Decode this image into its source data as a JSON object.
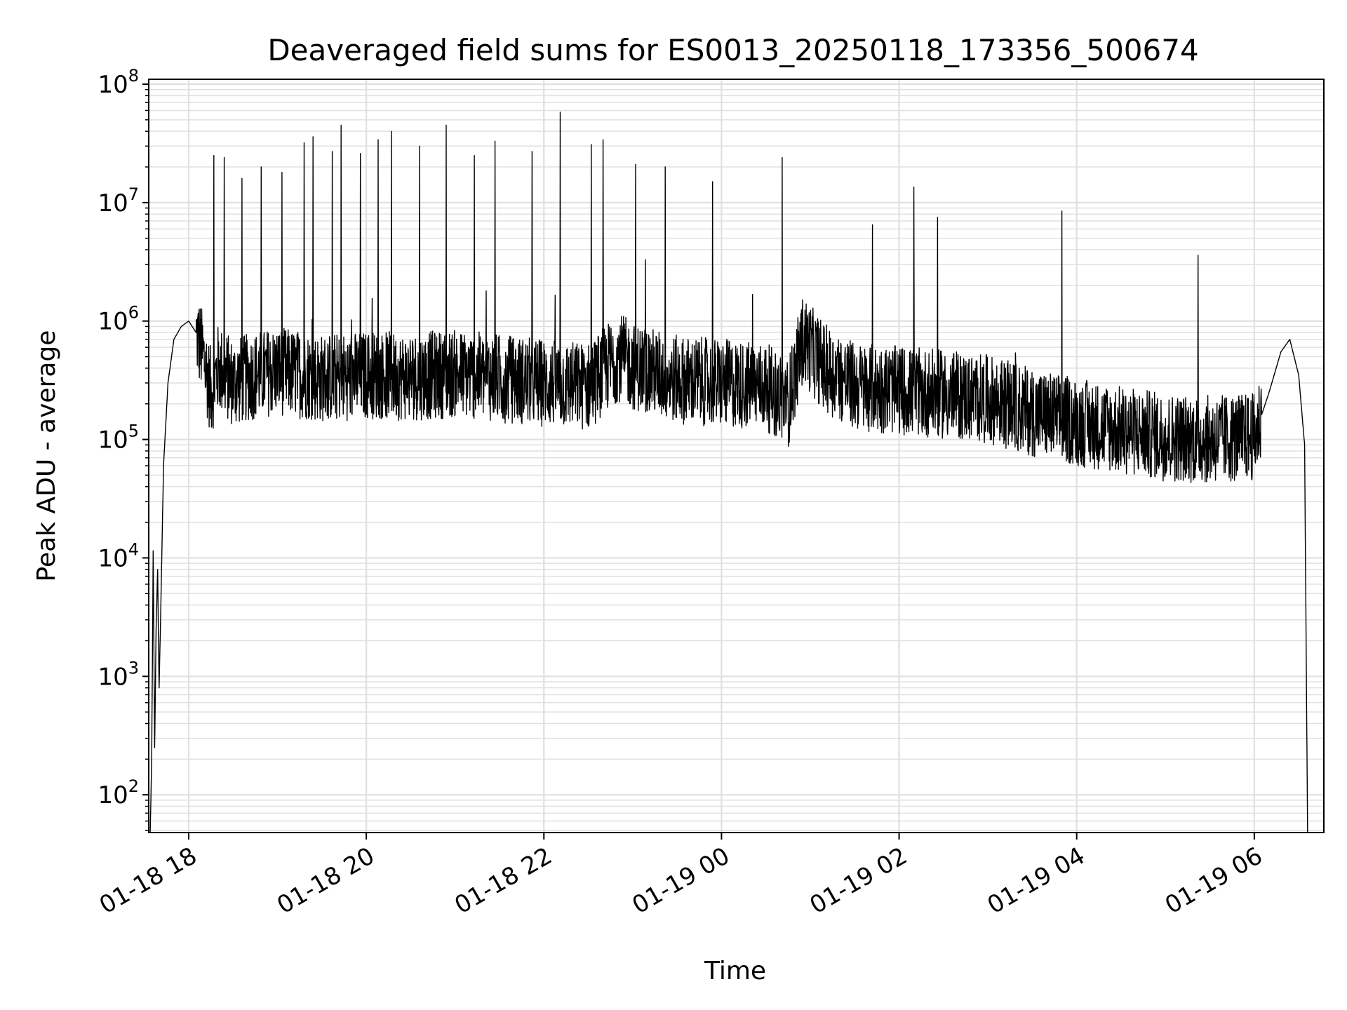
{
  "chart_data": {
    "type": "line",
    "title": "Deaveraged field sums for ES0013_20250118_173356_500674",
    "xlabel": "Time",
    "ylabel": "Peak ADU - average",
    "yscale": "log",
    "ylim": [
      48,
      110000000
    ],
    "xlim": [
      "2025-01-18 17:33",
      "2025-01-19 06:47"
    ],
    "grid": true,
    "grid_minor": true,
    "line_color": "#000000",
    "grid_color": "#e0e0e0",
    "x_ticks": [
      {
        "value": "2025-01-18 18:00",
        "label": "01-18 18"
      },
      {
        "value": "2025-01-18 20:00",
        "label": "01-18 20"
      },
      {
        "value": "2025-01-18 22:00",
        "label": "01-18 22"
      },
      {
        "value": "2025-01-19 00:00",
        "label": "01-19 00"
      },
      {
        "value": "2025-01-19 02:00",
        "label": "01-19 02"
      },
      {
        "value": "2025-01-19 04:00",
        "label": "01-19 04"
      },
      {
        "value": "2025-01-19 06:00",
        "label": "01-19 06"
      }
    ],
    "y_ticks": [
      {
        "value": 100,
        "base": "10",
        "exp": "2"
      },
      {
        "value": 1000,
        "base": "10",
        "exp": "3"
      },
      {
        "value": 10000,
        "base": "10",
        "exp": "4"
      },
      {
        "value": 100000,
        "base": "10",
        "exp": "5"
      },
      {
        "value": 1000000,
        "base": "10",
        "exp": "6"
      },
      {
        "value": 10000000,
        "base": "10",
        "exp": "7"
      },
      {
        "value": 100000000,
        "base": "10",
        "exp": "8"
      }
    ],
    "series": [
      {
        "points": [
          [
            "2025-01-18 17:34",
            48
          ],
          [
            "2025-01-18 17:35",
            200
          ],
          [
            "2025-01-18 17:36",
            11500
          ],
          [
            "2025-01-18 17:37",
            250
          ],
          [
            "2025-01-18 17:38",
            2500
          ],
          [
            "2025-01-18 17:39",
            8000
          ],
          [
            "2025-01-18 17:40",
            800
          ],
          [
            "2025-01-18 17:41",
            3000
          ],
          [
            "2025-01-18 17:43",
            60000
          ],
          [
            "2025-01-18 17:46",
            300000
          ],
          [
            "2025-01-18 17:50",
            700000
          ],
          [
            "2025-01-18 17:55",
            900000
          ],
          [
            "2025-01-18 18:00",
            1000000
          ],
          [
            "2025-01-18 18:05",
            800000
          ],
          [
            "2025-01-18 18:10",
            500000
          ],
          [
            "2025-01-18 18:15",
            250000
          ],
          [
            "2025-01-18 18:20",
            400000
          ],
          [
            "2025-01-18 18:30",
            300000
          ],
          [
            "2025-01-18 18:45",
            350000
          ],
          [
            "2025-01-18 19:00",
            380000
          ],
          [
            "2025-01-18 19:30",
            330000
          ],
          [
            "2025-01-18 20:00",
            350000
          ],
          [
            "2025-01-18 20:30",
            340000
          ],
          [
            "2025-01-18 21:00",
            360000
          ],
          [
            "2025-01-18 21:30",
            330000
          ],
          [
            "2025-01-18 22:00",
            300000
          ],
          [
            "2025-01-18 22:30",
            280000
          ],
          [
            "2025-01-18 22:50",
            500000
          ],
          [
            "2025-01-18 23:00",
            420000
          ],
          [
            "2025-01-18 23:30",
            320000
          ],
          [
            "2025-01-19 00:00",
            300000
          ],
          [
            "2025-01-19 00:30",
            280000
          ],
          [
            "2025-01-19 00:45",
            200000
          ],
          [
            "2025-01-19 00:55",
            700000
          ],
          [
            "2025-01-19 01:10",
            400000
          ],
          [
            "2025-01-19 01:30",
            280000
          ],
          [
            "2025-01-19 02:00",
            260000
          ],
          [
            "2025-01-19 02:30",
            240000
          ],
          [
            "2025-01-19 03:00",
            220000
          ],
          [
            "2025-01-19 03:30",
            170000
          ],
          [
            "2025-01-19 04:00",
            140000
          ],
          [
            "2025-01-19 04:30",
            120000
          ],
          [
            "2025-01-19 05:00",
            105000
          ],
          [
            "2025-01-19 05:30",
            100000
          ],
          [
            "2025-01-19 06:00",
            105000
          ],
          [
            "2025-01-19 06:10",
            250000
          ],
          [
            "2025-01-19 06:18",
            550000
          ],
          [
            "2025-01-19 06:24",
            700000
          ],
          [
            "2025-01-19 06:30",
            350000
          ],
          [
            "2025-01-19 06:34",
            90000
          ],
          [
            "2025-01-19 06:36",
            48
          ]
        ],
        "spikes": [
          [
            "2025-01-18 18:17",
            25000000
          ],
          [
            "2025-01-18 18:24",
            24000000
          ],
          [
            "2025-01-18 18:36",
            16000000
          ],
          [
            "2025-01-18 18:49",
            20000000
          ],
          [
            "2025-01-18 19:03",
            18000000
          ],
          [
            "2025-01-18 19:18",
            32000000
          ],
          [
            "2025-01-18 19:24",
            36000000
          ],
          [
            "2025-01-18 19:37",
            27000000
          ],
          [
            "2025-01-18 19:43",
            45000000
          ],
          [
            "2025-01-18 19:56",
            26000000
          ],
          [
            "2025-01-18 20:08",
            34000000
          ],
          [
            "2025-01-18 20:17",
            40000000
          ],
          [
            "2025-01-18 20:36",
            30000000
          ],
          [
            "2025-01-18 20:54",
            45000000
          ],
          [
            "2025-01-18 21:13",
            25000000
          ],
          [
            "2025-01-18 21:27",
            33000000
          ],
          [
            "2025-01-18 21:52",
            27000000
          ],
          [
            "2025-01-18 22:11",
            58000000
          ],
          [
            "2025-01-18 22:32",
            31000000
          ],
          [
            "2025-01-18 22:40",
            34000000
          ],
          [
            "2025-01-18 23:02",
            21000000
          ],
          [
            "2025-01-18 23:22",
            20000000
          ],
          [
            "2025-01-18 23:54",
            15000000
          ],
          [
            "2025-01-19 00:41",
            24000000
          ],
          [
            "2025-01-19 01:42",
            6500000
          ],
          [
            "2025-01-19 02:10",
            13500000
          ],
          [
            "2025-01-19 02:26",
            7500000
          ],
          [
            "2025-01-19 03:50",
            8500000
          ],
          [
            "2025-01-19 05:22",
            3600000
          ]
        ]
      }
    ]
  }
}
